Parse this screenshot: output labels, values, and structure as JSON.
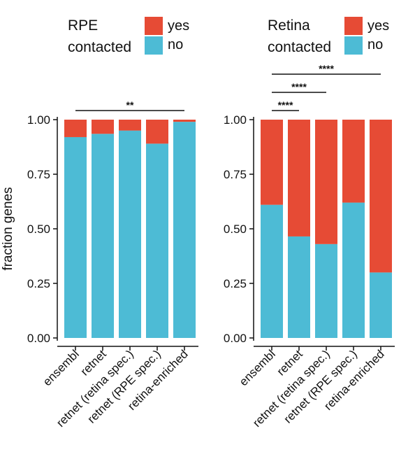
{
  "chart_data": [
    {
      "type": "bar",
      "stacked": true,
      "legend_title": [
        "RPE",
        "contacted"
      ],
      "ylabel": "fraction genes",
      "ylim": [
        0,
        1
      ],
      "yticks": [
        "0.00",
        "0.25",
        "0.50",
        "0.75",
        "1.00"
      ],
      "categories": [
        "ensembl",
        "retnet",
        "retnet (retina spec.)",
        "retnet (RPE spec.)",
        "retina-enriched"
      ],
      "series": [
        {
          "name": "no",
          "color": "#4DBBD5",
          "values": [
            0.92,
            0.935,
            0.95,
            0.89,
            0.99
          ]
        },
        {
          "name": "yes",
          "color": "#E64B35",
          "values": [
            0.08,
            0.065,
            0.05,
            0.11,
            0.01
          ]
        }
      ],
      "significance": [
        {
          "from": 0,
          "to": 4,
          "label": "**"
        }
      ]
    },
    {
      "type": "bar",
      "stacked": true,
      "legend_title": [
        "Retina",
        "contacted"
      ],
      "ylabel": "",
      "ylim": [
        0,
        1
      ],
      "yticks": [
        "0.00",
        "0.25",
        "0.50",
        "0.75",
        "1.00"
      ],
      "categories": [
        "ensembl",
        "retnet",
        "retnet (retina spec.)",
        "retnet (RPE spec.)",
        "retina-enriched"
      ],
      "series": [
        {
          "name": "no",
          "color": "#4DBBD5",
          "values": [
            0.61,
            0.465,
            0.43,
            0.62,
            0.3
          ]
        },
        {
          "name": "yes",
          "color": "#E64B35",
          "values": [
            0.39,
            0.535,
            0.57,
            0.38,
            0.7
          ]
        }
      ],
      "significance": [
        {
          "from": 0,
          "to": 1,
          "label": "****"
        },
        {
          "from": 0,
          "to": 2,
          "label": "****"
        },
        {
          "from": 0,
          "to": 4,
          "label": "****"
        }
      ]
    }
  ]
}
